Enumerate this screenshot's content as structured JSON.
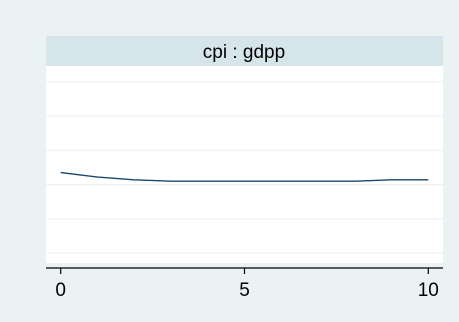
{
  "chart_data": {
    "type": "line",
    "title": "cpi : gdpp",
    "xlabel": "",
    "ylabel": "",
    "xlim": [
      -0.4,
      10.4
    ],
    "ylim": [
      0,
      5
    ],
    "x_ticks": [
      0,
      5,
      10
    ],
    "x_tick_labels": [
      "0",
      "5",
      "10"
    ],
    "grid": true,
    "series": [
      {
        "x": [
          0,
          1,
          2,
          3,
          4,
          5,
          6,
          7,
          8,
          9,
          10
        ],
        "values": [
          2.35,
          2.22,
          2.14,
          2.1,
          2.1,
          2.1,
          2.1,
          2.1,
          2.1,
          2.14,
          2.14
        ]
      }
    ],
    "colors": {
      "outer_background": "#eaf2f3",
      "plot_background": "#ffffff",
      "title_strip": "#d6e5ea",
      "grid": "#eaf2f3",
      "line": "#1a476f",
      "axis": "#000000"
    }
  }
}
